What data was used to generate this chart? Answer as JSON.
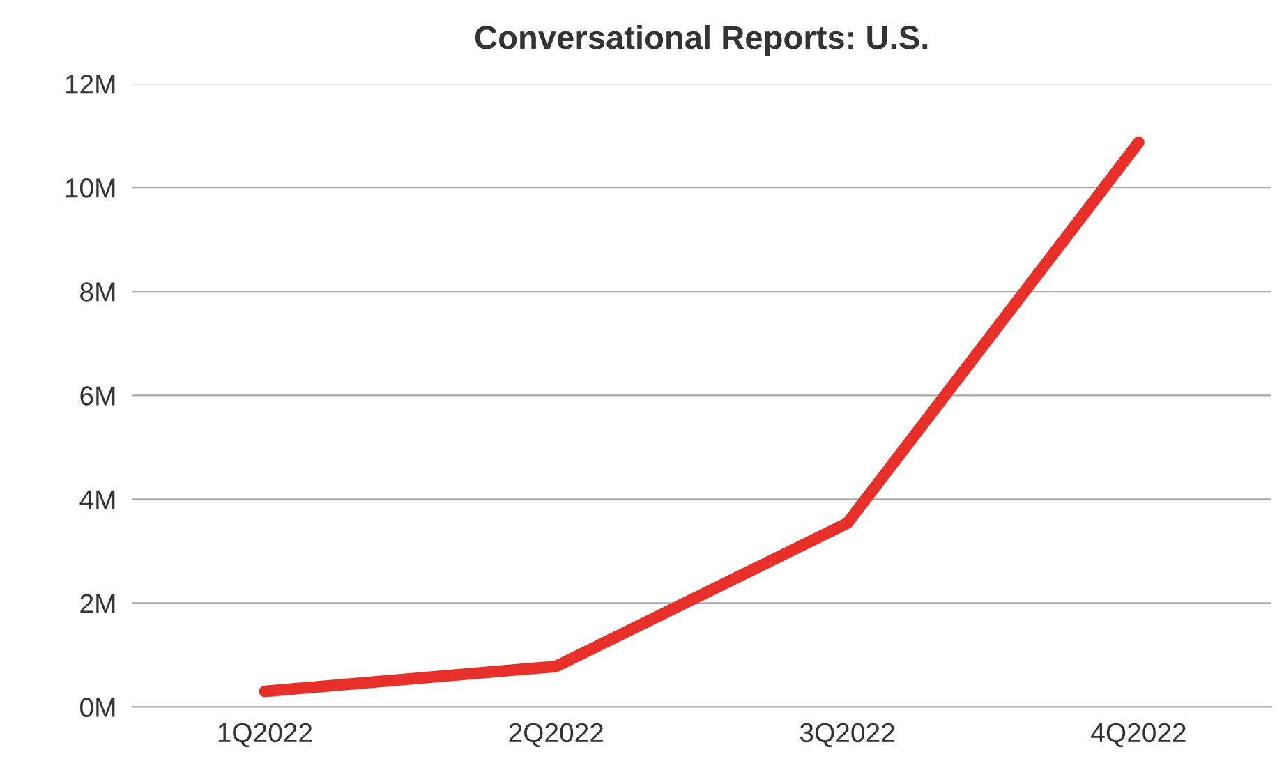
{
  "chart_data": {
    "type": "line",
    "title": "Conversational Reports: U.S.",
    "categories": [
      "1Q2022",
      "2Q2022",
      "3Q2022",
      "4Q2022"
    ],
    "series": [
      {
        "color": "#e8302a",
        "values": [
          0.3,
          0.78,
          3.54,
          10.87
        ]
      }
    ],
    "ylim": [
      0,
      12
    ],
    "yticks": [
      {
        "value": 0,
        "label": "0M"
      },
      {
        "value": 2,
        "label": "2M"
      },
      {
        "value": 4,
        "label": "4M"
      },
      {
        "value": 6,
        "label": "6M"
      },
      {
        "value": 8,
        "label": "8M"
      },
      {
        "value": 10,
        "label": "10M"
      },
      {
        "value": 12,
        "label": "12M"
      }
    ],
    "grid": "y",
    "marker": "none",
    "line_style": "solid"
  }
}
